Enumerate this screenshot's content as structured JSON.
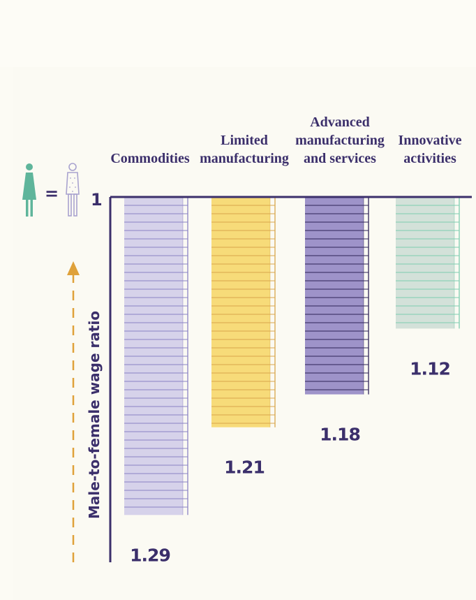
{
  "chart_data": {
    "type": "bar",
    "categories": [
      "Commodities",
      "Limited manufacturing",
      "Advanced manufacturing and services",
      "Innovative activities"
    ],
    "category_lines": [
      [
        "Commodities"
      ],
      [
        "Limited",
        "manufacturing"
      ],
      [
        "Advanced",
        "manufacturing",
        "and services"
      ],
      [
        "Innovative",
        "activities"
      ]
    ],
    "values": [
      1.29,
      1.21,
      1.18,
      1.12
    ],
    "value_labels": [
      "1.29",
      "1.21",
      "1.18",
      "1.12"
    ],
    "baseline": 1,
    "baseline_label": "1",
    "ylabel": "Male-to-female wage ratio",
    "equals_sign": "=",
    "ylim": [
      1,
      1.3
    ],
    "bars_hang_down_from_baseline": true,
    "colors": {
      "bar_fills": [
        "#d6d2ea",
        "#f7db79",
        "#9e93c9",
        "#d3e1d9"
      ],
      "bar_lines": [
        "#8a82c4",
        "#d8a64c",
        "#2e2358",
        "#7dcdb0"
      ],
      "text": "#3b2f6b",
      "axis": "#3b2f6b",
      "arrow": "#dfa13a",
      "female_icon": "#5fb59b",
      "male_icon": "#a9a3cf"
    },
    "icons": [
      "female-figure-icon",
      "male-figure-icon"
    ],
    "grid": false,
    "legend": "none"
  }
}
